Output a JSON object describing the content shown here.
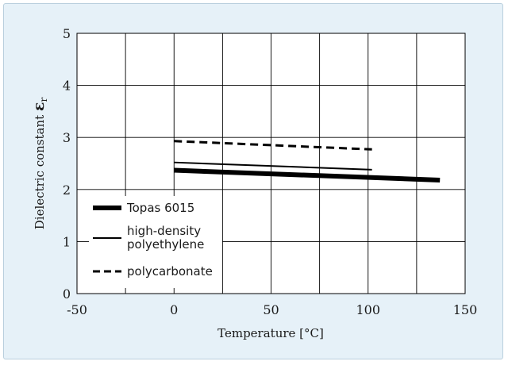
{
  "chart_data": {
    "type": "line",
    "xlabel": "Temperature  [°C]",
    "ylabel": "Dielectric constant ",
    "ylabel_symbol": "ε",
    "ylabel_subscript": "r",
    "xlim": [
      -50,
      150
    ],
    "ylim": [
      0,
      5
    ],
    "xticks": [
      -50,
      0,
      50,
      100,
      150
    ],
    "yticks": [
      0,
      1,
      2,
      3,
      4,
      5
    ],
    "grid": true,
    "legend_position": "lower-left",
    "series": [
      {
        "name": "Topas 6015",
        "style": "thick-solid",
        "color": "#000000",
        "x": [
          0,
          137
        ],
        "y": [
          2.37,
          2.18
        ]
      },
      {
        "name": "high-density polyethylene",
        "name_lines": [
          "high-density",
          "polyethylene"
        ],
        "style": "thin-solid",
        "color": "#000000",
        "x": [
          0,
          102
        ],
        "y": [
          2.52,
          2.38
        ]
      },
      {
        "name": "polycarbonate",
        "style": "dashed",
        "color": "#000000",
        "x": [
          0,
          102
        ],
        "y": [
          2.93,
          2.77
        ]
      }
    ]
  }
}
